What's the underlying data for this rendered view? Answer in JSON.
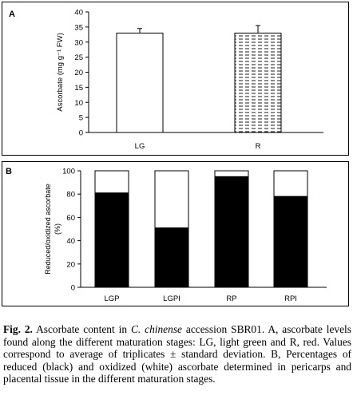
{
  "chart_data": [
    {
      "type": "bar",
      "panel_label": "A",
      "categories": [
        "LG",
        "R"
      ],
      "values": [
        33,
        33
      ],
      "errors": [
        1.5,
        2.5
      ],
      "bar_fills": [
        "white",
        "dashed-pattern"
      ],
      "ylabel": "Ascorbate (mg g⁻¹ FW)",
      "ylim": [
        0,
        40
      ],
      "yticks": [
        "0",
        "5",
        "10",
        "15",
        "20",
        "25",
        "30",
        "35",
        "40"
      ],
      "grid": false
    },
    {
      "type": "bar",
      "stacked": true,
      "panel_label": "B",
      "categories": [
        "LGP",
        "LGPI",
        "RP",
        "RPI"
      ],
      "series": [
        {
          "values": [
            81,
            51,
            95,
            78
          ],
          "color": "#000000"
        },
        {
          "values": [
            19,
            49,
            5,
            22
          ],
          "color": "#ffffff"
        }
      ],
      "ylabel_line1": "Reduced/oxidized ascorbate",
      "ylabel_line2": "(%)",
      "ylim": [
        0,
        100
      ],
      "yticks": [
        "0",
        "20",
        "40",
        "60",
        "80",
        "100"
      ],
      "grid": false
    }
  ],
  "caption": {
    "fig_label": "Fig. 2.",
    "part1": " Ascorbate content in ",
    "species": "C. chinense",
    "part2": " accession SBR01. A, ascorbate levels found along the different maturation stages: LG, light green and R, red. Values correspond to average of triplicates ± standard deviation. B, Percentages of reduced (black) and oxidized (white) ascorbate determined in pericarps and placental tissue in the different maturation stages."
  }
}
